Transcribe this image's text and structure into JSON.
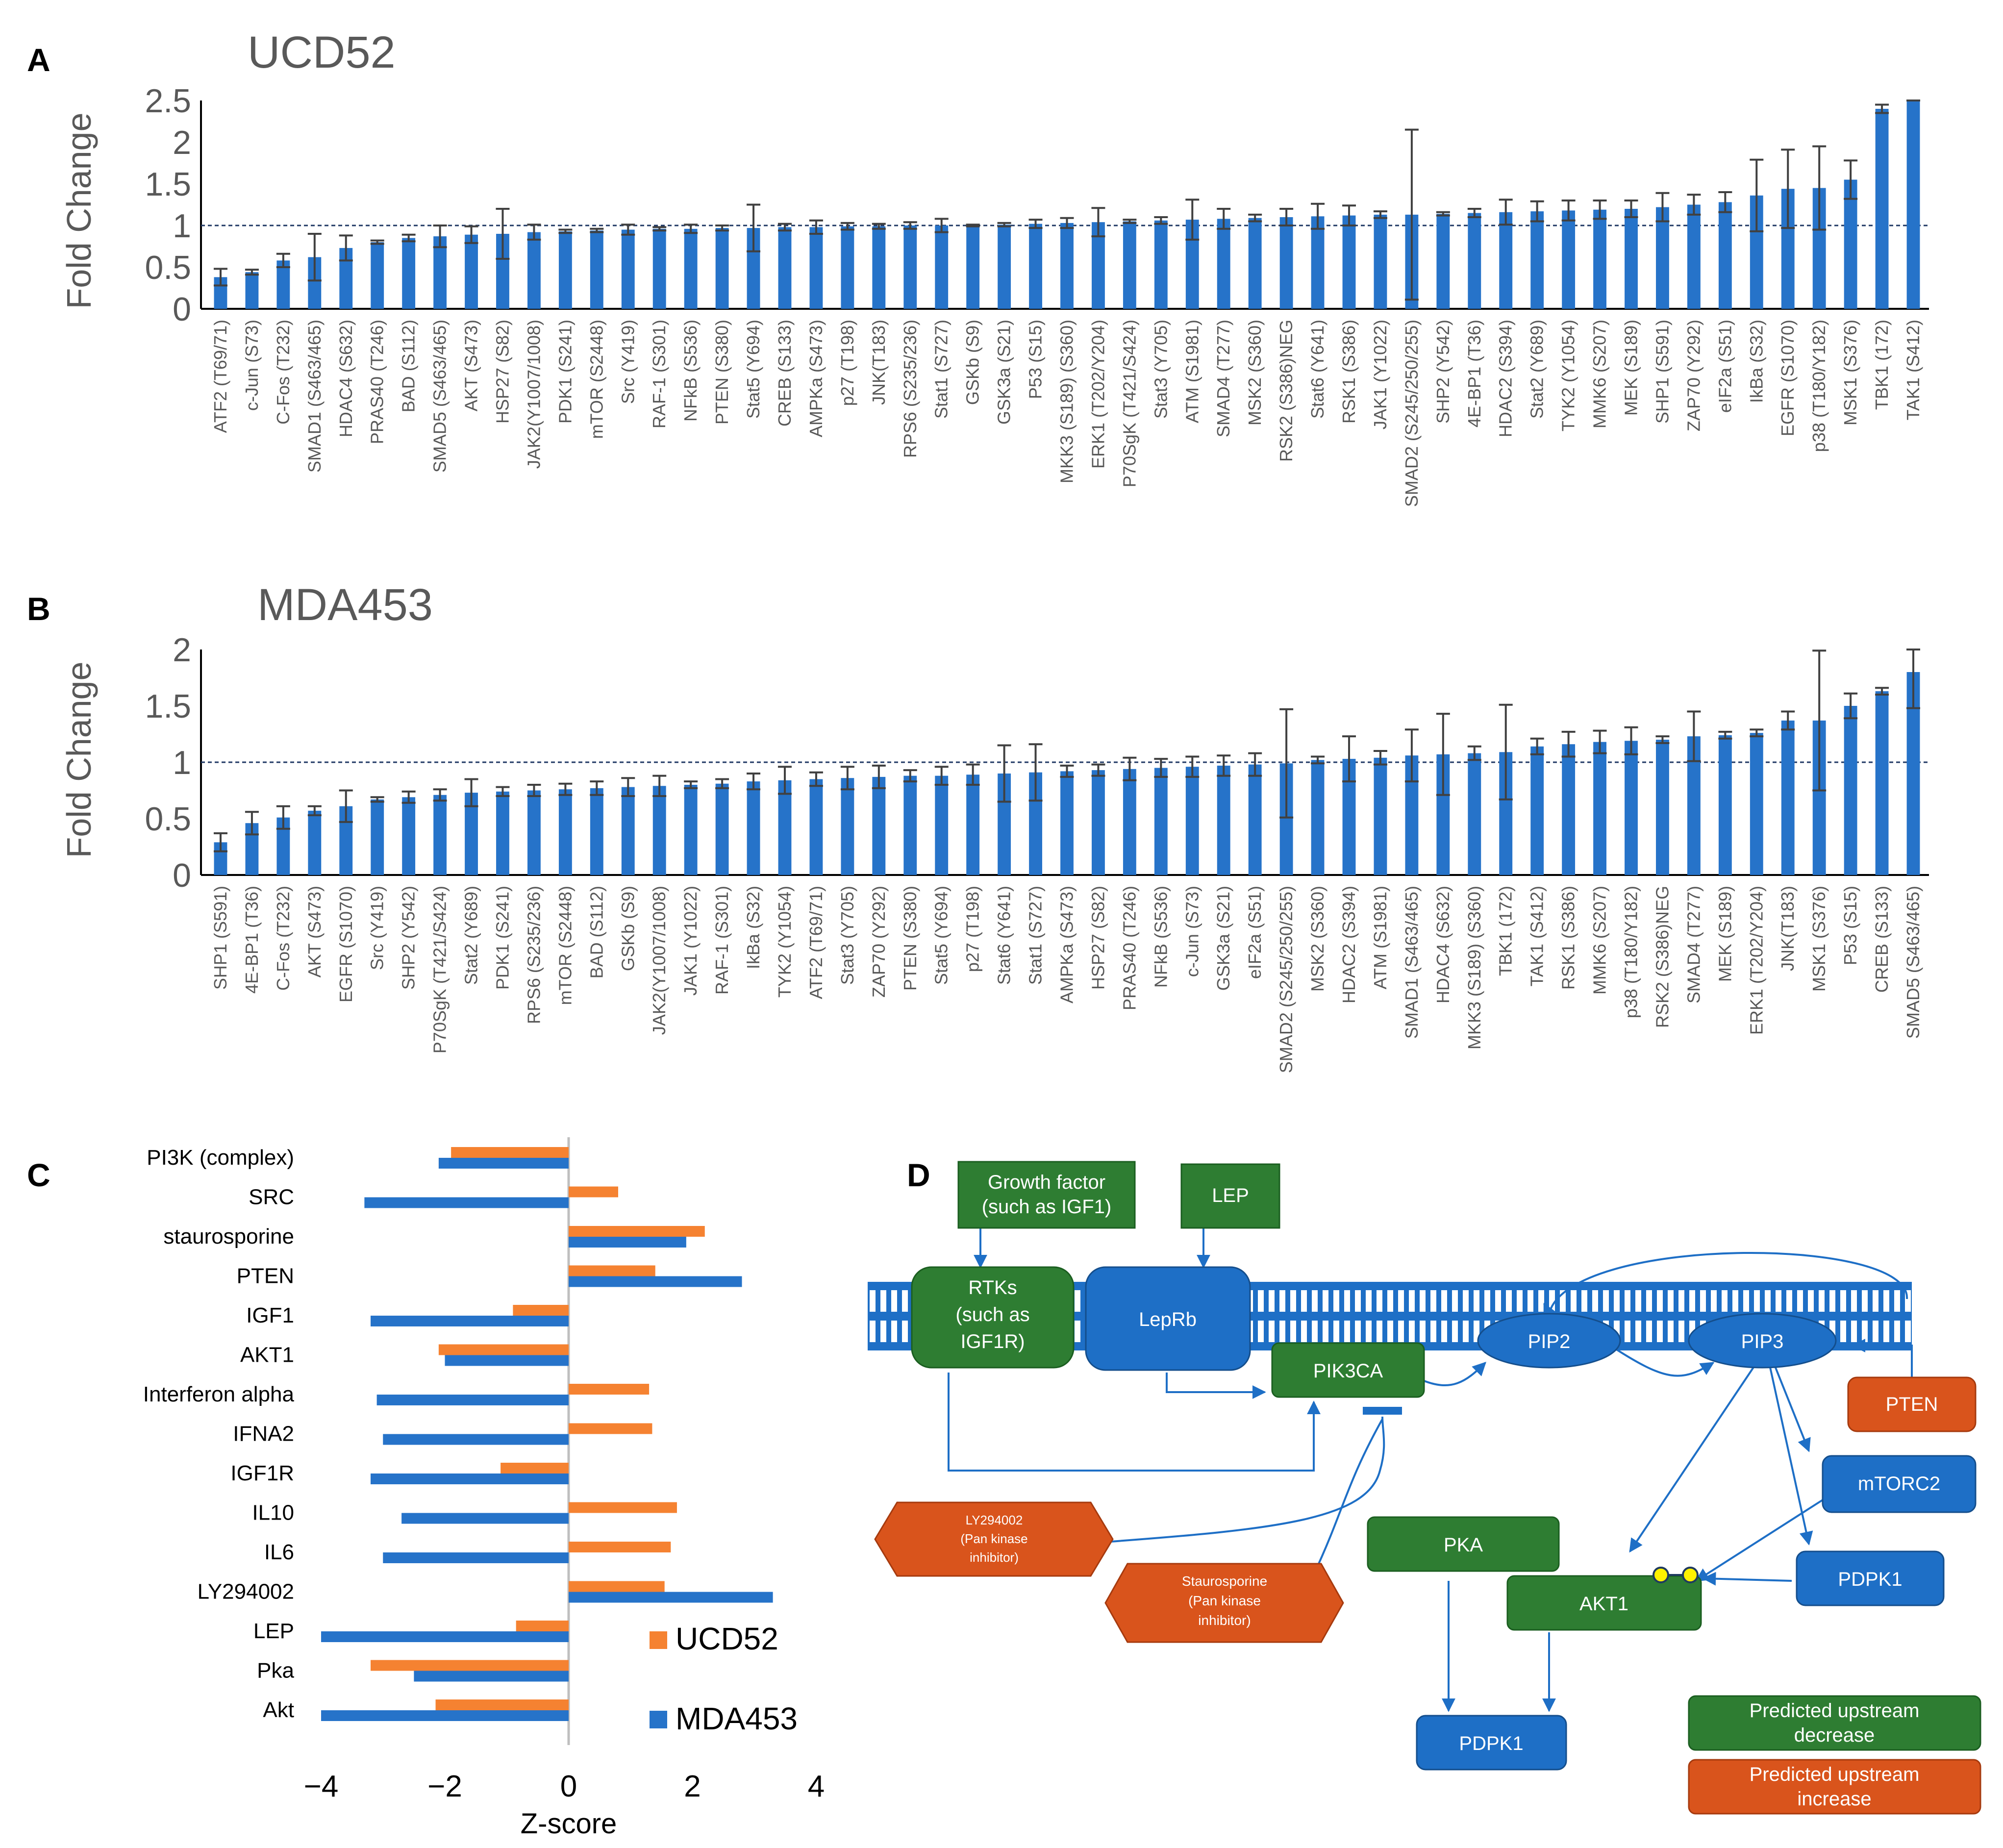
{
  "panels": {
    "A": {
      "letter": "A",
      "title": "UCD52"
    },
    "B": {
      "letter": "B",
      "title": "MDA453"
    },
    "C": {
      "letter": "C"
    },
    "D": {
      "letter": "D"
    }
  },
  "colors": {
    "blue": "#2673C9",
    "orange": "#F58231",
    "green": "#2C7A2C",
    "green_fill": "#2E7D32",
    "orange_fill": "#D9541C",
    "blue_fill": "#1E6FC6",
    "err": "#404040",
    "axis": "#000000",
    "text": "#595959"
  },
  "chart_data": [
    {
      "type": "bar",
      "title": "UCD52",
      "ylabel": "Fold Change",
      "xlabel": "",
      "ylim": [
        0,
        2.5
      ],
      "yticks": [
        "0",
        "0.5",
        "1",
        "1.5",
        "2",
        "2.5"
      ],
      "reference_line": 1,
      "categories": [
        "ATF2 (T69/71)",
        "c-Jun (S73)",
        "C-Fos (T232)",
        "SMAD1 (S463/465)",
        "HDAC4 (S632)",
        "PRAS40 (T246)",
        "BAD (S112)",
        "SMAD5 (S463/465)",
        "AKT (S473)",
        "HSP27 (S82)",
        "JAK2(Y1007/1008)",
        "PDK1 (S241)",
        "mTOR (S2448)",
        "Src (Y419)",
        "RAF-1 (S301)",
        "NFkB (S536)",
        "PTEN (S380)",
        "Stat5 (Y694)",
        "CREB (S133)",
        "AMPKa (S473)",
        "p27 (T198)",
        "JNK(T183)",
        "RPS6 (S235/236)",
        "Stat1 (S727)",
        "GSKb (S9)",
        "GSK3a (S21)",
        "P53 (S15)",
        "MKK3 (S189) (S360)",
        "ERK1 (T202/Y204)",
        "P70SgK (T421/S424)",
        "Stat3 (Y705)",
        "ATM (S1981)",
        "SMAD4 (T277)",
        "MSK2 (S360)",
        "RSK2 (S386)NEG",
        "Stat6 (Y641)",
        "RSK1 (S386)",
        "JAK1 (Y1022)",
        "SMAD2 (S245/250/255)",
        "SHP2 (Y542)",
        "4E-BP1 (T36)",
        "HDAC2 (S394)",
        "Stat2 (Y689)",
        "TYK2 (Y1054)",
        "MMK6 (S207)",
        "MEK (S189)",
        "SHP1 (S591)",
        "ZAP70 (Y292)",
        "eIF2a (S51)",
        "IkBa (S32)",
        "EGFR (S1070)",
        "p38 (T180/Y182)",
        "MSK1 (S376)",
        "TBK1 (172)",
        "TAK1 (S412)"
      ],
      "values": [
        0.38,
        0.44,
        0.58,
        0.62,
        0.73,
        0.8,
        0.85,
        0.87,
        0.89,
        0.9,
        0.92,
        0.93,
        0.94,
        0.95,
        0.96,
        0.96,
        0.97,
        0.97,
        0.98,
        0.98,
        0.99,
        0.99,
        1.0,
        1.0,
        1.0,
        1.01,
        1.02,
        1.03,
        1.04,
        1.05,
        1.06,
        1.07,
        1.08,
        1.09,
        1.1,
        1.11,
        1.12,
        1.13,
        1.13,
        1.14,
        1.15,
        1.16,
        1.17,
        1.18,
        1.19,
        1.2,
        1.22,
        1.25,
        1.28,
        1.36,
        1.44,
        1.45,
        1.55,
        2.4,
        2.55
      ],
      "errors": [
        0.1,
        0.03,
        0.08,
        0.28,
        0.15,
        0.02,
        0.04,
        0.13,
        0.1,
        0.3,
        0.09,
        0.02,
        0.02,
        0.06,
        0.02,
        0.05,
        0.03,
        0.28,
        0.04,
        0.08,
        0.04,
        0.03,
        0.04,
        0.08,
        0.01,
        0.02,
        0.05,
        0.06,
        0.17,
        0.02,
        0.04,
        0.24,
        0.12,
        0.04,
        0.1,
        0.15,
        0.12,
        0.04,
        1.02,
        0.02,
        0.05,
        0.15,
        0.12,
        0.12,
        0.11,
        0.1,
        0.17,
        0.12,
        0.12,
        0.43,
        0.47,
        0.5,
        0.23,
        0.05,
        0.05
      ]
    },
    {
      "type": "bar",
      "title": "MDA453",
      "ylabel": "Fold Change",
      "xlabel": "",
      "ylim": [
        0,
        2
      ],
      "yticks": [
        "0",
        "0.5",
        "1",
        "1.5",
        "2"
      ],
      "reference_line": 1,
      "categories": [
        "SHP1 (S591)",
        "4E-BP1 (T36)",
        "C-Fos (T232)",
        "AKT (S473)",
        "EGFR (S1070)",
        "Src (Y419)",
        "SHP2 (Y542)",
        "P70SgK (T421/S424)",
        "Stat2 (Y689)",
        "PDK1 (S241)",
        "RPS6 (S235/236)",
        "mTOR (S2448)",
        "BAD (S112)",
        "GSKb (S9)",
        "JAK2(Y1007/1008)",
        "JAK1 (Y1022)",
        "RAF-1 (S301)",
        "IkBa (S32)",
        "TYK2 (Y1054)",
        "ATF2 (T69/71)",
        "Stat3 (Y705)",
        "ZAP70 (Y292)",
        "PTEN (S380)",
        "Stat5 (Y694)",
        "p27 (T198)",
        "Stat6 (Y641)",
        "Stat1 (S727)",
        "AMPKa (S473)",
        "HSP27 (S82)",
        "PRAS40 (T246)",
        "NFkB (S536)",
        "c-Jun (S73)",
        "GSK3a (S21)",
        "eIF2a (S51)",
        "SMAD2 (S245/250/255)",
        "MSK2 (S360)",
        "HDAC2 (S394)",
        "ATM (S1981)",
        "SMAD1 (S463/465)",
        "HDAC4 (S632)",
        "MKK3 (S189) (S360)",
        "TBK1 (172)",
        "TAK1 (S412)",
        "RSK1 (S386)",
        "MMK6 (S207)",
        "p38 (T180/Y182)",
        "RSK2 (S386)NEG",
        "SMAD4 (T277)",
        "MEK (S189)",
        "ERK1 (T202/Y204)",
        "JNK(T183)",
        "MSK1 (S376)",
        "P53 (S15)",
        "CREB (S133)",
        "SMAD5 (S463/465)"
      ],
      "values": [
        0.29,
        0.46,
        0.51,
        0.57,
        0.61,
        0.67,
        0.69,
        0.71,
        0.73,
        0.74,
        0.75,
        0.76,
        0.77,
        0.78,
        0.79,
        0.8,
        0.81,
        0.83,
        0.84,
        0.85,
        0.86,
        0.87,
        0.88,
        0.88,
        0.89,
        0.9,
        0.91,
        0.92,
        0.93,
        0.94,
        0.95,
        0.96,
        0.97,
        0.98,
        0.99,
        1.02,
        1.03,
        1.04,
        1.06,
        1.07,
        1.08,
        1.09,
        1.14,
        1.16,
        1.18,
        1.19,
        1.2,
        1.23,
        1.24,
        1.26,
        1.37,
        1.37,
        1.5,
        1.63,
        1.8
      ]
    },
    {
      "type": "bar",
      "orientation": "horizontal",
      "title": "",
      "xlabel": "Z-score",
      "ylabel": "",
      "xlim": [
        -4,
        4
      ],
      "xticks": [
        "−4",
        "−2",
        "0",
        "2",
        "4"
      ],
      "categories": [
        "PI3K (complex)",
        "SRC",
        "staurosporine",
        "PTEN",
        "IGF1",
        "AKT1",
        "Interferon alpha",
        "IFNA2",
        "IGF1R",
        "IL10",
        "IL6",
        "LY294002",
        "LEP",
        "Pka",
        "Akt"
      ],
      "series": [
        {
          "name": "UCD52",
          "values": [
            -1.9,
            0.8,
            2.2,
            1.4,
            -0.9,
            -2.1,
            1.3,
            1.35,
            -1.1,
            1.75,
            1.65,
            1.55,
            -0.85,
            -3.2,
            -2.15
          ]
        },
        {
          "name": "MDA453",
          "values": [
            -2.1,
            -3.3,
            1.9,
            2.8,
            -3.2,
            -2.0,
            -3.1,
            -3.0,
            -3.2,
            -2.7,
            -3.0,
            3.3,
            -4.0,
            -2.5,
            -4.0
          ]
        }
      ]
    }
  ],
  "panelA_errors": [
    0.1,
    0.03,
    0.08,
    0.28,
    0.15,
    0.02,
    0.04,
    0.13,
    0.1,
    0.3,
    0.09,
    0.02,
    0.02,
    0.06,
    0.02,
    0.05,
    0.03,
    0.28,
    0.04,
    0.08,
    0.04,
    0.03,
    0.04,
    0.08,
    0.01,
    0.02,
    0.05,
    0.06,
    0.17,
    0.02,
    0.04,
    0.24,
    0.12,
    0.04,
    0.1,
    0.15,
    0.12,
    0.04,
    1.02,
    0.02,
    0.05,
    0.15,
    0.12,
    0.12,
    0.11,
    0.1,
    0.17,
    0.12,
    0.12,
    0.43,
    0.47,
    0.5,
    0.23,
    0.05,
    0.05
  ],
  "panelB_errors": [
    0.08,
    0.1,
    0.1,
    0.04,
    0.14,
    0.02,
    0.05,
    0.05,
    0.12,
    0.04,
    0.05,
    0.05,
    0.06,
    0.08,
    0.09,
    0.03,
    0.04,
    0.07,
    0.12,
    0.06,
    0.1,
    0.1,
    0.05,
    0.08,
    0.09,
    0.25,
    0.25,
    0.05,
    0.05,
    0.1,
    0.08,
    0.09,
    0.09,
    0.1,
    0.48,
    0.03,
    0.2,
    0.06,
    0.23,
    0.36,
    0.06,
    0.42,
    0.07,
    0.11,
    0.1,
    0.12,
    0.03,
    0.22,
    0.03,
    0.03,
    0.08,
    0.62,
    0.11,
    0.03,
    0.32
  ],
  "legend_c": {
    "ucd52": "UCD52",
    "mda453": "MDA453"
  },
  "pathway": {
    "growth_factor": [
      "Growth factor",
      "(such as IGF1)"
    ],
    "lep": "LEP",
    "rtks": [
      "RTKs",
      "(such as",
      "IGF1R)"
    ],
    "leprb": "LepRb",
    "pik3ca": "PIK3CA",
    "pip2": "PIP2",
    "pip3": "PIP3",
    "pten": "PTEN",
    "mtorc2": "mTORC2",
    "pdpk1_right": "PDPK1",
    "pka": "PKA",
    "akt1": "AKT1",
    "pdpk1_bottom": "PDPK1",
    "ly294002": [
      "LY294002",
      "(Pan  kinase",
      "inhibitor)"
    ],
    "staurosporine": [
      "Staurosporine",
      "(Pan kinase",
      "inhibitor)"
    ],
    "legend_green": [
      "Predicted upstream",
      "decrease"
    ],
    "legend_orange": [
      "Predicted upstream",
      "increase"
    ]
  }
}
